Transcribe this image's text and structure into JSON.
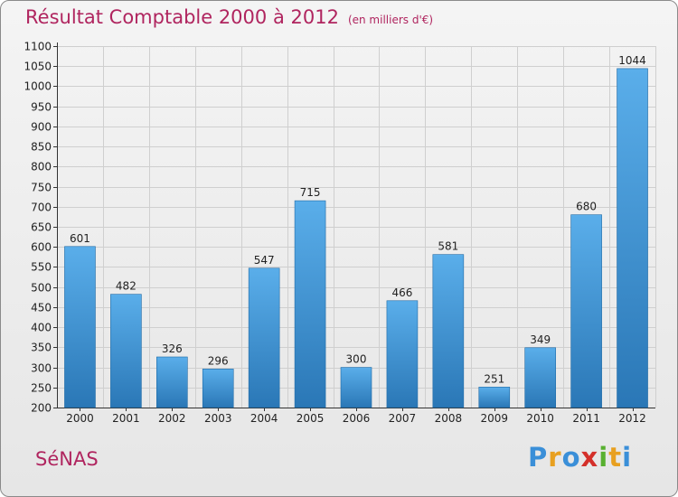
{
  "header": {
    "title": "Résultat Comptable 2000 à 2012",
    "unit": "(en milliers d'€)"
  },
  "footer": {
    "commune": "SéNAS",
    "logo": {
      "text": "Proxiti",
      "letters": [
        "P",
        "r",
        "o",
        "x",
        "i",
        "t",
        "i"
      ],
      "colors": [
        "#3a8fd8",
        "#e8a020",
        "#3a8fd8",
        "#d4302a",
        "#58b030",
        "#e8a020",
        "#3a8fd8"
      ]
    }
  },
  "colors": {
    "accent": "#b0255f",
    "bar_top": "#5aaeea",
    "bar_bottom": "#2a77b6"
  },
  "chart_data": {
    "type": "bar",
    "title": "Résultat Comptable 2000 à 2012",
    "xlabel": "",
    "ylabel": "",
    "categories": [
      "2000",
      "2001",
      "2002",
      "2003",
      "2004",
      "2005",
      "2006",
      "2007",
      "2008",
      "2009",
      "2010",
      "2011",
      "2012"
    ],
    "values": [
      601,
      482,
      326,
      296,
      547,
      715,
      300,
      466,
      581,
      251,
      349,
      680,
      1044
    ],
    "ylim": [
      200,
      1100
    ],
    "yticks": [
      200,
      250,
      300,
      350,
      400,
      450,
      500,
      550,
      600,
      650,
      700,
      750,
      800,
      850,
      900,
      950,
      1000,
      1050,
      1100
    ],
    "grid": true
  }
}
